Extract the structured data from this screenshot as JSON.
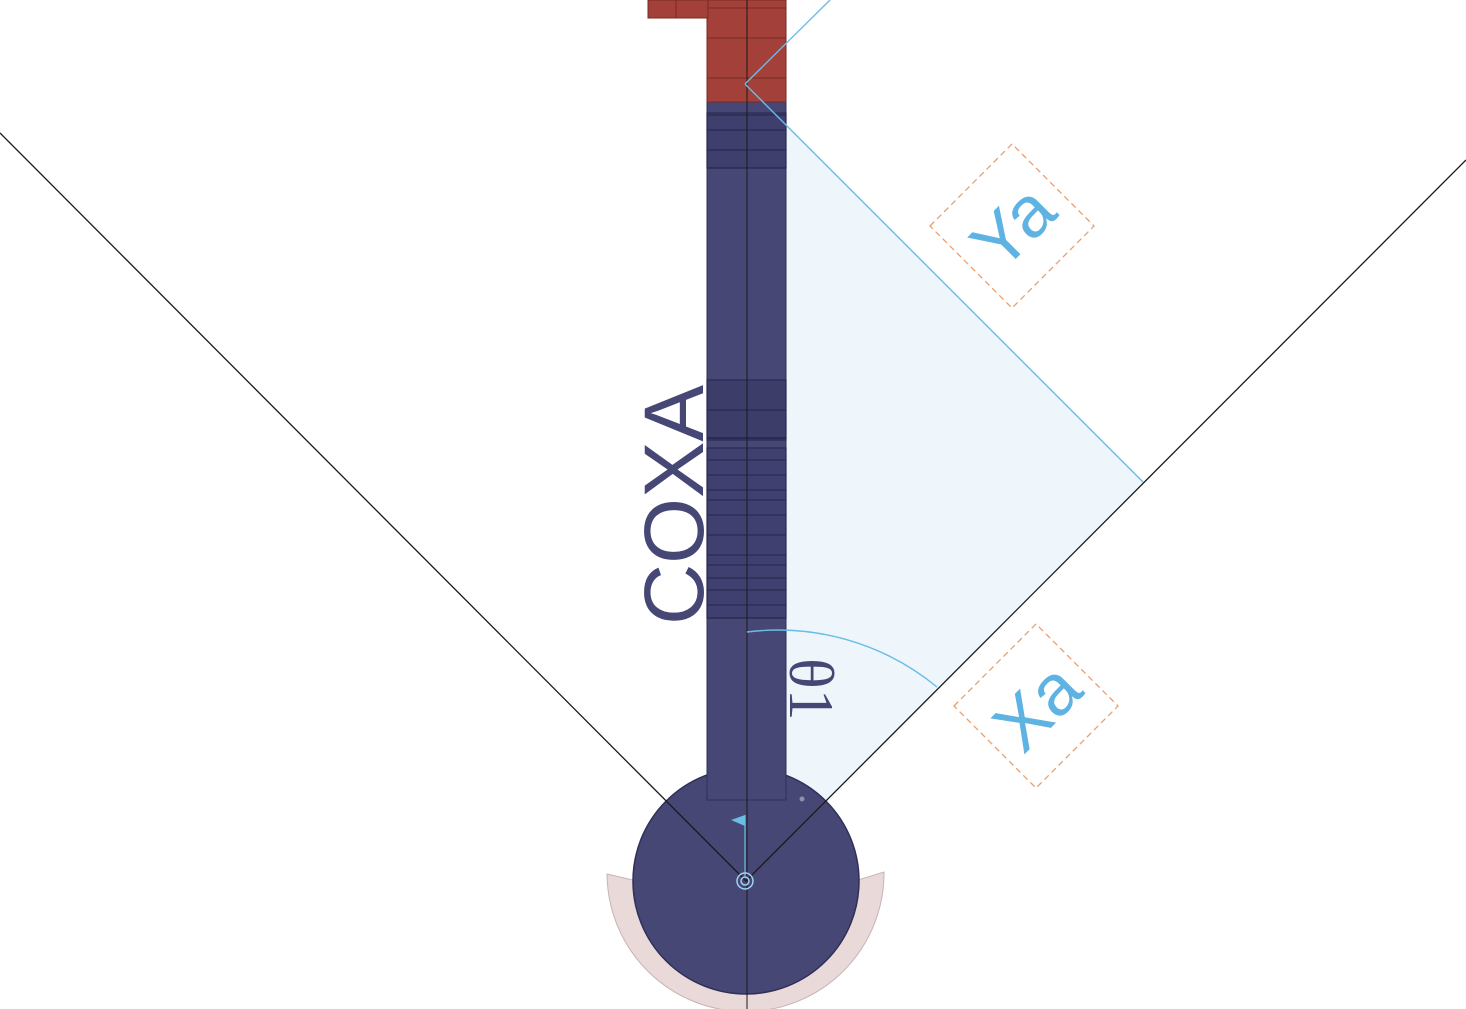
{
  "labels": {
    "coxa": "COXA",
    "theta": "θ1",
    "ya": "Ya",
    "xa": "Xa"
  },
  "colors": {
    "body_navy": "#464775",
    "body_navy_dark": "#2f3058",
    "body_red": "#a3403a",
    "body_red_dark": "#7a2a25",
    "accent_blue": "#6bbde6",
    "fill_blue": "#eef6fc",
    "label_blue": "#5fb3e3",
    "dash_orange": "#e8a070",
    "base_pink": "#e9d9d9",
    "line_black": "#1a1a1a"
  }
}
